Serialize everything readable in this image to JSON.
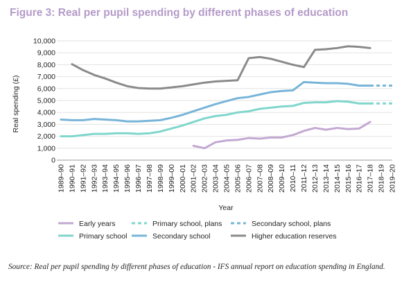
{
  "figure": {
    "title": "Figure 3: Real per pupil spending by different phases of education",
    "source": "Source: Real per pupil spending by different phases of education - IFS annual report on education spending in England."
  },
  "chart_data": {
    "type": "line",
    "title": "Figure 3: Real per pupil spending by different phases of education",
    "xlabel": "Year",
    "ylabel": "Real spending (£)",
    "ylim": [
      0,
      10000
    ],
    "yticks": [
      0,
      1000,
      2000,
      3000,
      4000,
      5000,
      6000,
      7000,
      8000,
      9000,
      10000
    ],
    "ytick_labels": [
      "0",
      "1,000",
      "2,000",
      "3,000",
      "4,000",
      "5,000",
      "6,000",
      "7,000",
      "8,000",
      "9,000",
      "10,000"
    ],
    "grid": "horizontal",
    "legend_position": "bottom",
    "categories": [
      "1989–90",
      "1990–91",
      "1991–92",
      "1992–93",
      "1993–94",
      "1994–95",
      "1995–96",
      "1996–97",
      "1997–98",
      "1998–99",
      "1999–00",
      "2000–01",
      "2001–02",
      "2002–03",
      "2003–04",
      "2004–05",
      "2005–06",
      "2006–07",
      "2007–08",
      "2008–09",
      "2009–10",
      "2010–11",
      "2011–12",
      "2012–13",
      "2013–14",
      "2014–15",
      "2015–16",
      "2016–17",
      "2017–18",
      "2018–19",
      "2019–20"
    ],
    "series": [
      {
        "name": "Early years",
        "color": "#c3a8d2",
        "style": "solid",
        "values": [
          null,
          null,
          null,
          null,
          null,
          null,
          null,
          null,
          null,
          null,
          null,
          null,
          1200,
          1000,
          1500,
          1650,
          1700,
          1850,
          1800,
          1900,
          1900,
          2100,
          2450,
          2700,
          2550,
          2700,
          2600,
          2650,
          3200,
          null,
          null
        ]
      },
      {
        "name": "Primary school, plans",
        "color": "#7fd6cc",
        "style": "dashed",
        "values": [
          null,
          null,
          null,
          null,
          null,
          null,
          null,
          null,
          null,
          null,
          null,
          null,
          null,
          null,
          null,
          null,
          null,
          null,
          null,
          null,
          null,
          null,
          null,
          null,
          null,
          null,
          null,
          null,
          4750,
          4750,
          4750
        ]
      },
      {
        "name": "Secondary school, plans",
        "color": "#77b4d8",
        "style": "dashed",
        "values": [
          null,
          null,
          null,
          null,
          null,
          null,
          null,
          null,
          null,
          null,
          null,
          null,
          null,
          null,
          null,
          null,
          null,
          null,
          null,
          null,
          null,
          null,
          null,
          null,
          null,
          null,
          null,
          null,
          6250,
          6250,
          6250
        ]
      },
      {
        "name": "Primary school",
        "color": "#7fd6cc",
        "style": "solid",
        "values": [
          2000,
          2000,
          2100,
          2200,
          2200,
          2250,
          2250,
          2200,
          2250,
          2400,
          2650,
          2900,
          3200,
          3500,
          3700,
          3800,
          4000,
          4100,
          4300,
          4400,
          4500,
          4550,
          4800,
          4850,
          4850,
          4950,
          4900,
          4750,
          4750,
          null,
          null
        ]
      },
      {
        "name": "Secondary school",
        "color": "#77b4d8",
        "style": "solid",
        "values": [
          3400,
          3350,
          3350,
          3450,
          3400,
          3350,
          3250,
          3250,
          3300,
          3350,
          3550,
          3800,
          4100,
          4400,
          4700,
          4950,
          5200,
          5300,
          5500,
          5700,
          5800,
          5850,
          6550,
          6500,
          6450,
          6450,
          6400,
          6250,
          6250,
          null,
          null
        ]
      },
      {
        "name": "Higher education reserves",
        "color": "#8a8a8a",
        "style": "solid",
        "values": [
          null,
          8050,
          7550,
          7150,
          6850,
          6500,
          6200,
          6050,
          6000,
          6000,
          6100,
          6200,
          6350,
          6500,
          6600,
          6650,
          6700,
          8550,
          8650,
          8500,
          8250,
          8000,
          7800,
          9250,
          9300,
          9400,
          9550,
          9500,
          9400,
          null,
          null
        ]
      }
    ]
  }
}
